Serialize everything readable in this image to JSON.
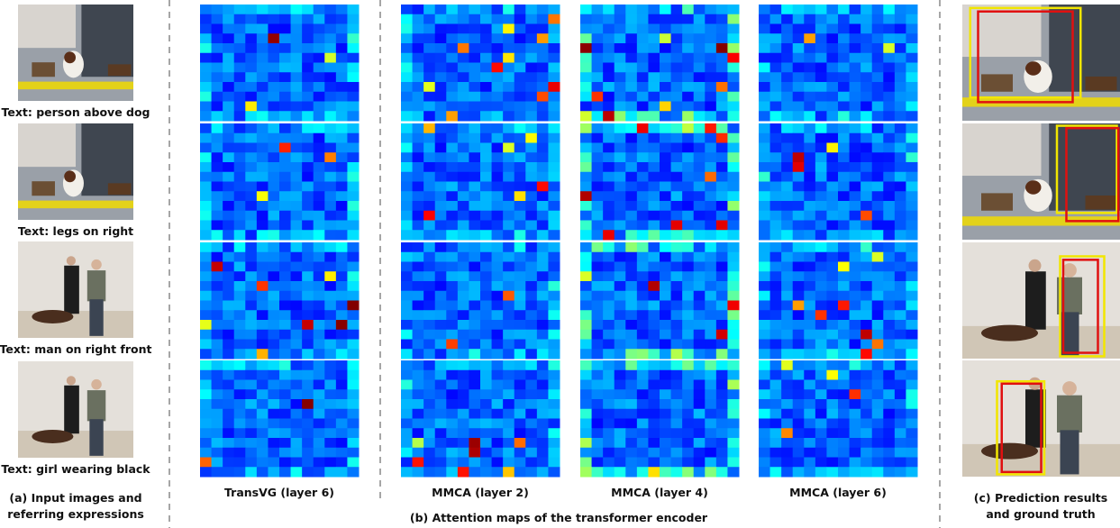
{
  "input_column": {
    "expressions": [
      "Text: person above dog",
      "Text: legs on right",
      "Text: man on right front",
      "Text: girl wearing black"
    ],
    "caption": [
      "(a) Input images and",
      "referring expressions"
    ]
  },
  "attention_column": {
    "labels": [
      "TransVG (layer 6)",
      "MMCA (layer 2)",
      "MMCA (layer 4)",
      "MMCA (layer 6)"
    ],
    "caption": "(b) Attention maps of the transformer encoder"
  },
  "result_column": {
    "caption": [
      "(c) Prediction results",
      "and ground truth"
    ]
  }
}
